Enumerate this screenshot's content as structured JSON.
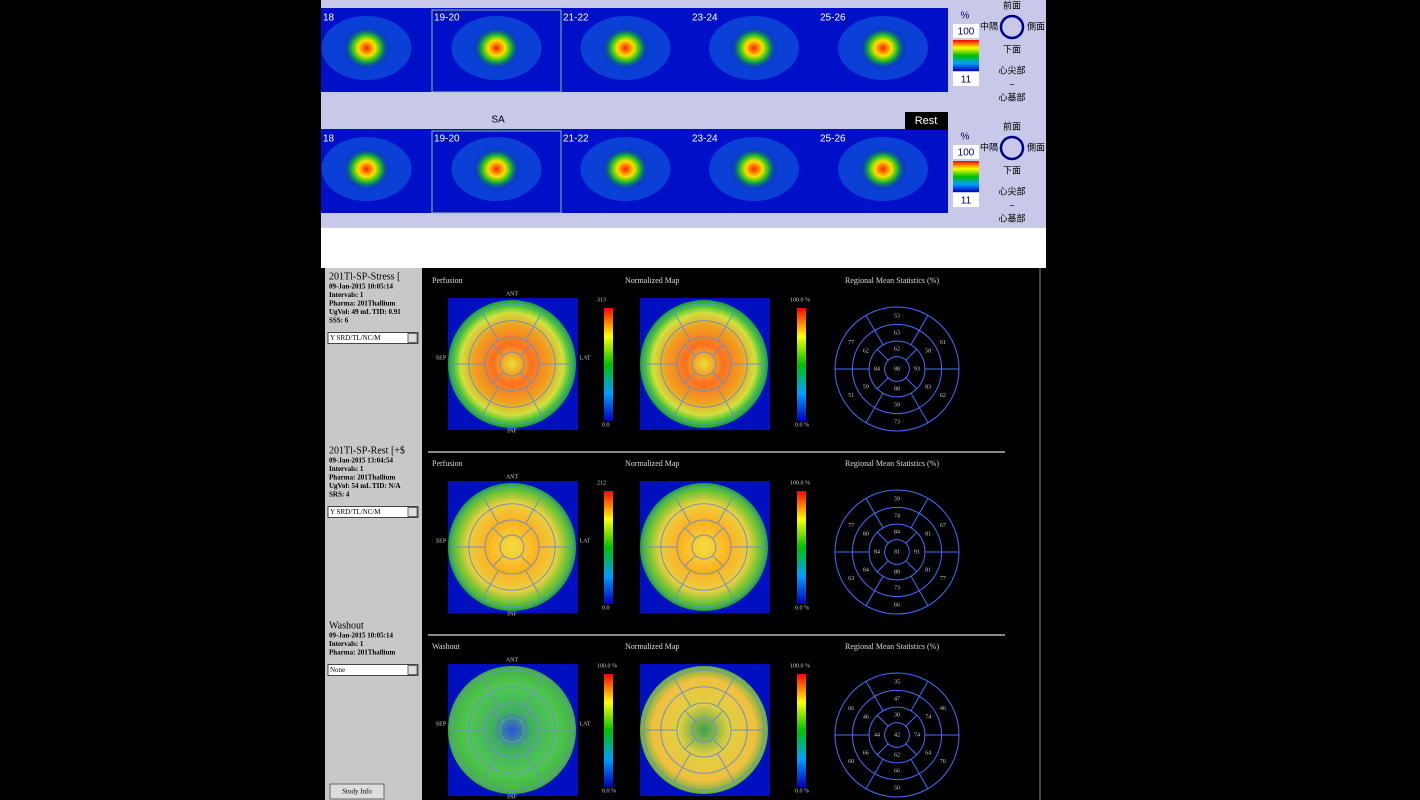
{
  "strips": [
    {
      "title": null,
      "slices": [
        "18",
        "19-20",
        "21-22",
        "23-24",
        "25-26"
      ],
      "scale_unit": "%",
      "scale_max": "100",
      "scale_min": "11",
      "orientation": {
        "top": "前面",
        "left": "中隔",
        "right": "側面",
        "bottom": "下面",
        "from": "心尖部",
        "sep": "~",
        "to": "心基部"
      }
    },
    {
      "title": "Rest",
      "slices": [
        "18",
        "19-20",
        "21-22",
        "23-24",
        "25-26"
      ],
      "scale_unit": "%",
      "scale_max": "100",
      "scale_min": "11",
      "orientation": {
        "top": "前面",
        "left": "中隔",
        "right": "側面",
        "bottom": "下面",
        "from": "心尖部",
        "sep": "~",
        "to": "心基部"
      }
    }
  ],
  "view_label": "SA",
  "studies": [
    {
      "title": "201Tl-SP-Stress [",
      "lines": [
        "09-Jan-2015 10:05:14",
        "Intervals: 1",
        "Pharma: 201Thallium",
        "UgVol:   49 mL    TID: 0.91",
        "SSS: 6"
      ],
      "option": "Y SRD/TL/NC/M"
    },
    {
      "title": "201Tl-SP-Rest [+$",
      "lines": [
        "09-Jan-2015 13:04:54",
        "Intervals: 1",
        "Pharma: 201Thallium",
        "UgVol:   54 mL    TID: N/A",
        "SRS: 4"
      ],
      "option": "Y SRD/TL/NC/M"
    },
    {
      "title": "Washout",
      "lines": [
        "09-Jan-2015 10:05:14",
        "Intervals: 1",
        "Pharma: 201Thallium"
      ],
      "option": "None"
    }
  ],
  "study_info_button": "Study Info",
  "axis_labels": {
    "ant": "ANT",
    "sep": "SEP",
    "lat": "LAT",
    "inf": "INF"
  },
  "rows": [
    {
      "map_title": "Perfusion",
      "normalized_title": "Normalized Map",
      "stats_title": "Regional Mean Statistics (%)",
      "scale_max": "313",
      "scale_min": "0.0",
      "norm_max": "100.0 %",
      "norm_min": "0.0 %",
      "segments": [
        53,
        77,
        51,
        73,
        62,
        61,
        63,
        62,
        59,
        59,
        83,
        58,
        62,
        84,
        88,
        93,
        88
      ]
    },
    {
      "map_title": "Perfusion",
      "normalized_title": "Normalized Map",
      "stats_title": "Regional Mean Statistics (%)",
      "scale_max": "212",
      "scale_min": "0.0",
      "norm_max": "100.0 %",
      "norm_min": "0.0 %",
      "segments": [
        59,
        77,
        63,
        66,
        77,
        67,
        74,
        80,
        84,
        73,
        81,
        81,
        84,
        84,
        88,
        91,
        81
      ]
    },
    {
      "map_title": "Washout",
      "normalized_title": "Normalized Map",
      "stats_title": "Regional Mean Statistics (%)",
      "scale_max": "100.0 %",
      "scale_min": "0.0 %",
      "norm_max": "100.0 %",
      "norm_min": "0.0 %",
      "segments": [
        35,
        66,
        60,
        50,
        76,
        46,
        47,
        46,
        66,
        66,
        64,
        74,
        30,
        44,
        62,
        74,
        42
      ]
    }
  ]
}
